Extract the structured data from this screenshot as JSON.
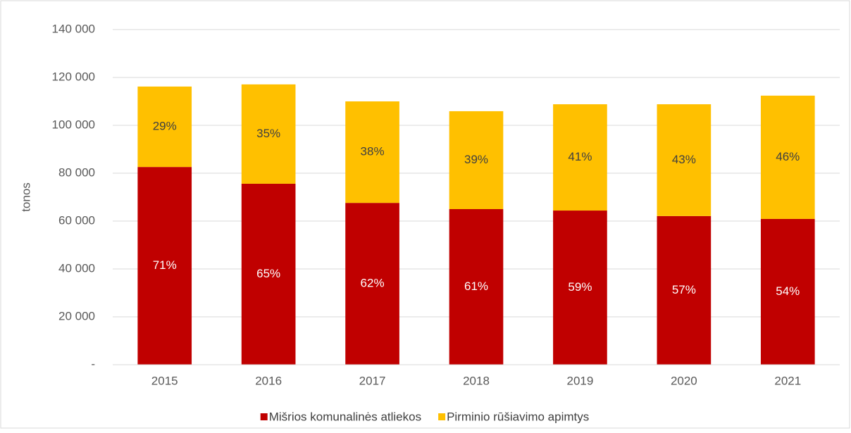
{
  "chart_data": {
    "type": "stacked_bar",
    "y_label": "tonos",
    "categories": [
      "2015",
      "2016",
      "2017",
      "2018",
      "2019",
      "2020",
      "2021"
    ],
    "series": [
      {
        "name": "Mišrios komunalinės atliekos",
        "color": "#c00000",
        "values": [
          82600,
          75600,
          67600,
          65000,
          64400,
          62100,
          60900
        ],
        "value_labels": [
          "71%",
          "65%",
          "62%",
          "61%",
          "59%",
          "57%",
          "54%"
        ]
      },
      {
        "name": "Pirminio rūšiavimo apimtys",
        "color": "#ffc000",
        "values": [
          33600,
          41500,
          42400,
          40900,
          44400,
          46700,
          51500
        ],
        "value_labels": [
          "29%",
          "35%",
          "38%",
          "39%",
          "41%",
          "43%",
          "46%"
        ]
      }
    ],
    "ylim": [
      0,
      140000
    ],
    "yticks": [
      {
        "value": 0,
        "label": "-"
      },
      {
        "value": 20000,
        "label": "20 000"
      },
      {
        "value": 40000,
        "label": "40 000"
      },
      {
        "value": 60000,
        "label": "60 000"
      },
      {
        "value": 80000,
        "label": "80 000"
      },
      {
        "value": 100000,
        "label": "100 000"
      },
      {
        "value": 120000,
        "label": "120 000"
      },
      {
        "value": 140000,
        "label": "140 000"
      }
    ],
    "grid": true,
    "legend": "bottom"
  }
}
